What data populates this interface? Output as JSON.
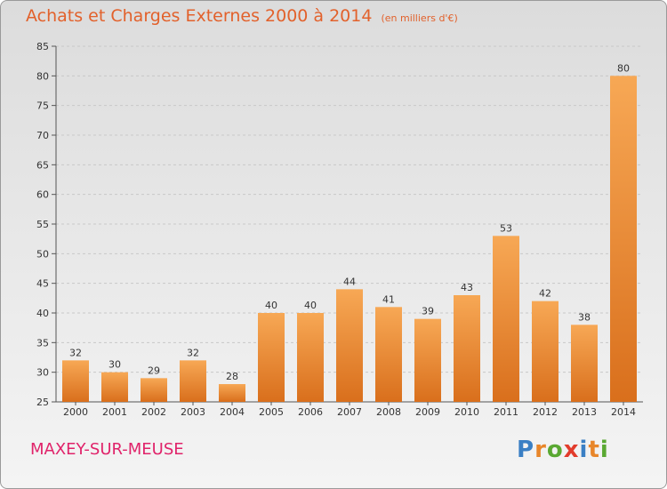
{
  "header": {
    "title": "Achats et Charges Externes 2000 à 2014",
    "unit": "(en milliers d'€)"
  },
  "footer": {
    "commune": "MAXEY-SUR-MEUSE",
    "brand": {
      "text": "Proxiti",
      "letters": [
        {
          "ch": "P",
          "color": "#3a7fc4"
        },
        {
          "ch": "r",
          "color": "#e8862a"
        },
        {
          "ch": "o",
          "color": "#5aa832"
        },
        {
          "ch": "x",
          "color": "#e23c2c"
        },
        {
          "ch": "i",
          "color": "#3a7fc4"
        },
        {
          "ch": "t",
          "color": "#e8862a"
        },
        {
          "ch": "i",
          "color": "#5aa832"
        }
      ]
    }
  },
  "colors": {
    "bar_light": "#f7a855",
    "bar_dark": "#d96f1c",
    "title": "#e2612b",
    "commune": "#e0236a",
    "grid": "#c8c8c8"
  },
  "chart_data": {
    "type": "bar",
    "title": "Achats et Charges Externes 2000 à 2014",
    "categories": [
      "2000",
      "2001",
      "2002",
      "2003",
      "2004",
      "2005",
      "2006",
      "2007",
      "2008",
      "2009",
      "2010",
      "2011",
      "2012",
      "2013",
      "2014"
    ],
    "values": [
      32,
      30,
      29,
      32,
      28,
      40,
      40,
      44,
      41,
      39,
      43,
      53,
      42,
      38,
      80
    ],
    "ylim": [
      25,
      85
    ],
    "yticks": [
      25,
      30,
      35,
      40,
      45,
      50,
      55,
      60,
      65,
      70,
      75,
      80,
      85
    ],
    "grid": "horizontal dashed",
    "legend": "none"
  }
}
